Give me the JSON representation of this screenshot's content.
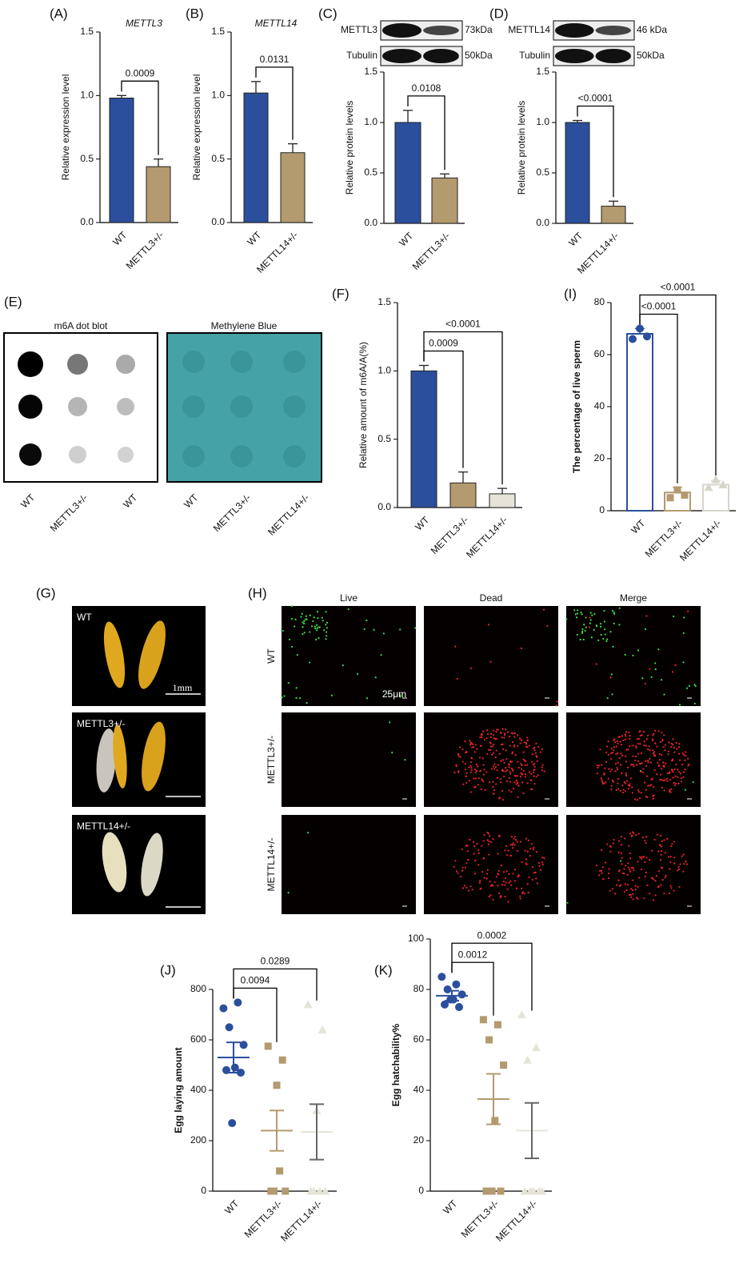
{
  "chart_data": [
    {
      "panel": "(A)",
      "type": "bar",
      "title": "METTL3",
      "y_label": "Relative expression level",
      "categories": [
        "WT",
        "METTL3+/-"
      ],
      "values": [
        0.98,
        0.44
      ],
      "errors": [
        0.02,
        0.06
      ],
      "colors": [
        "#2b4f9c",
        "#b39a6f"
      ],
      "ylim": [
        0,
        1.5
      ],
      "yticks": [
        {
          "value": 0,
          "label": "0.0"
        },
        0.5,
        {
          "value": 1,
          "label": "1.0"
        },
        1.5
      ],
      "comparisons": [
        {
          "pair": [
            0,
            1
          ],
          "label": "0.0009"
        }
      ]
    },
    {
      "panel": "(B)",
      "type": "bar",
      "title": "METTL14",
      "y_label": "Relative expression level",
      "categories": [
        "WT",
        "METTL14+/-"
      ],
      "values": [
        1.02,
        0.55
      ],
      "errors": [
        0.09,
        0.07
      ],
      "colors": [
        "#2b4f9c",
        "#b39a6f"
      ],
      "ylim": [
        0,
        1.5
      ],
      "yticks": [
        {
          "value": 0,
          "label": "0.0"
        },
        0.5,
        {
          "value": 1,
          "label": "1.0"
        },
        1.5
      ],
      "comparisons": [
        {
          "pair": [
            0,
            1
          ],
          "label": "0.0131"
        }
      ]
    },
    {
      "panel": "(C)",
      "type": "bar",
      "blot": {
        "target": "METTL3",
        "target_size": "73kDa",
        "control": "Tubulin",
        "control_size": "50kDa"
      },
      "y_label": "Relative protein levels",
      "categories": [
        "WT",
        "METTL3+/-"
      ],
      "values": [
        1.0,
        0.45
      ],
      "errors": [
        0.12,
        0.04
      ],
      "colors": [
        "#2b4f9c",
        "#b39a6f"
      ],
      "ylim": [
        0,
        1.5
      ],
      "yticks": [
        {
          "value": 0,
          "label": "0.0"
        },
        0.5,
        {
          "value": 1,
          "label": "1.0"
        },
        1.5
      ],
      "comparisons": [
        {
          "pair": [
            0,
            1
          ],
          "label": "0.0108"
        }
      ]
    },
    {
      "panel": "(D)",
      "type": "bar",
      "blot": {
        "target": "METTL14",
        "target_size": "46 kDa",
        "control": "Tubulin",
        "control_size": "50kDa"
      },
      "y_label": "Relative protein levels",
      "categories": [
        "WT",
        "METTL14+/-"
      ],
      "values": [
        1.0,
        0.17
      ],
      "errors": [
        0.02,
        0.05
      ],
      "colors": [
        "#2b4f9c",
        "#b39a6f"
      ],
      "ylim": [
        0,
        1.5
      ],
      "yticks": [
        {
          "value": 0,
          "label": "0.0"
        },
        0.5,
        {
          "value": 1,
          "label": "1.0"
        },
        1.5
      ],
      "comparisons": [
        {
          "pair": [
            0,
            1
          ],
          "label": "<0.0001"
        }
      ]
    },
    {
      "panel": "(F)",
      "type": "bar",
      "y_label": "Relative amount of m6A/A(%)",
      "categories": [
        "WT",
        "METTL3+/-",
        "METTL14+/-"
      ],
      "values": [
        1.0,
        0.18,
        0.1
      ],
      "errors": [
        0.04,
        0.08,
        0.04
      ],
      "colors": [
        "#2b4f9c",
        "#b39a6f",
        "#e6e4d9"
      ],
      "ylim": [
        0,
        1.5
      ],
      "yticks": [
        {
          "value": 0,
          "label": "0.0"
        },
        0.5,
        {
          "value": 1,
          "label": "1.0"
        },
        1.5
      ],
      "comparisons": [
        {
          "pair": [
            0,
            1
          ],
          "label": "0.0009"
        },
        {
          "pair": [
            0,
            2
          ],
          "label": "<0.0001"
        }
      ]
    },
    {
      "panel": "(I)",
      "type": "bar",
      "outline": true,
      "y_label": "The percentage of live sperm",
      "categories": [
        "WT",
        "METTL3+/-",
        "METTL14+/-"
      ],
      "values": [
        68,
        7,
        10
      ],
      "errors": [
        2,
        2,
        1.5
      ],
      "points": [
        [
          66,
          70,
          67
        ],
        [
          5,
          8,
          6
        ],
        [
          9,
          12,
          10
        ]
      ],
      "markers": [
        "circle",
        "square",
        "triangle"
      ],
      "colors": [
        "#2b4f9c",
        "#b39a6f",
        "#d8d6cc"
      ],
      "ylim": [
        0,
        80
      ],
      "yticks": [
        0,
        20,
        40,
        60,
        80
      ],
      "comparisons": [
        {
          "pair": [
            0,
            1
          ],
          "label": "<0.0001"
        },
        {
          "pair": [
            0,
            2
          ],
          "label": "<0.0001"
        }
      ]
    },
    {
      "panel": "(J)",
      "type": "dot",
      "y_label": "Egg laying amount",
      "categories": [
        "WT",
        "METTL3+/-",
        "METTL14+/-"
      ],
      "points": [
        [
          725,
          748,
          650,
          580,
          490,
          480,
          470,
          270
        ],
        [
          575,
          520,
          420,
          0,
          0,
          80,
          0
        ],
        [
          740,
          640,
          320,
          0,
          0,
          0,
          0
        ]
      ],
      "means": [
        530,
        240,
        235
      ],
      "sems": [
        60,
        80,
        110
      ],
      "markers": [
        "circle",
        "square",
        "triangle"
      ],
      "colors": [
        "#2b4f9c",
        "#b39a6f",
        "#e6e4d9"
      ],
      "ylim": [
        0,
        800
      ],
      "yticks": [
        0,
        200,
        400,
        600,
        800
      ],
      "comparisons": [
        {
          "pair": [
            0,
            1
          ],
          "label": "0.0094"
        },
        {
          "pair": [
            0,
            2
          ],
          "label": "0.0289"
        }
      ]
    },
    {
      "panel": "(K)",
      "type": "dot",
      "y_label": "Egg hatchability%",
      "categories": [
        "WT",
        "METTL3+/-",
        "METTL14+/-"
      ],
      "points": [
        [
          85,
          82,
          80,
          78,
          76,
          74,
          73,
          76
        ],
        [
          68,
          66,
          60,
          50,
          28,
          0,
          0,
          0
        ],
        [
          70,
          57,
          52,
          0,
          0,
          0,
          0,
          0
        ]
      ],
      "means": [
        77.5,
        36.5,
        24
      ],
      "sems": [
        2,
        10,
        11
      ],
      "markers": [
        "circle",
        "square",
        "triangle"
      ],
      "colors": [
        "#2b4f9c",
        "#b39a6f",
        "#e6e4d9"
      ],
      "ylim": [
        0,
        100
      ],
      "yticks": [
        0,
        20,
        40,
        60,
        80,
        100
      ],
      "comparisons": [
        {
          "pair": [
            0,
            1
          ],
          "label": "0.0012"
        },
        {
          "pair": [
            0,
            2
          ],
          "label": "0.0002"
        }
      ]
    }
  ],
  "figures": {
    "dot_blot": {
      "panel": "(E)",
      "left_title": "m6A dot blot",
      "right_title": "Methylene Blue",
      "lanes": [
        "WT",
        "METTL3+/-",
        "METTL14+/-"
      ]
    },
    "gonads": {
      "panel": "(G)",
      "rows": [
        "WT",
        "METTL3+/-",
        "METTL14+/-"
      ],
      "scale": "1mm"
    },
    "staining": {
      "panel": "(H)",
      "columns": [
        "Live",
        "Dead",
        "Merge"
      ],
      "rows": [
        "WT",
        "METTL3+/-",
        "METTL14+/-"
      ],
      "scale": "25μm"
    }
  }
}
